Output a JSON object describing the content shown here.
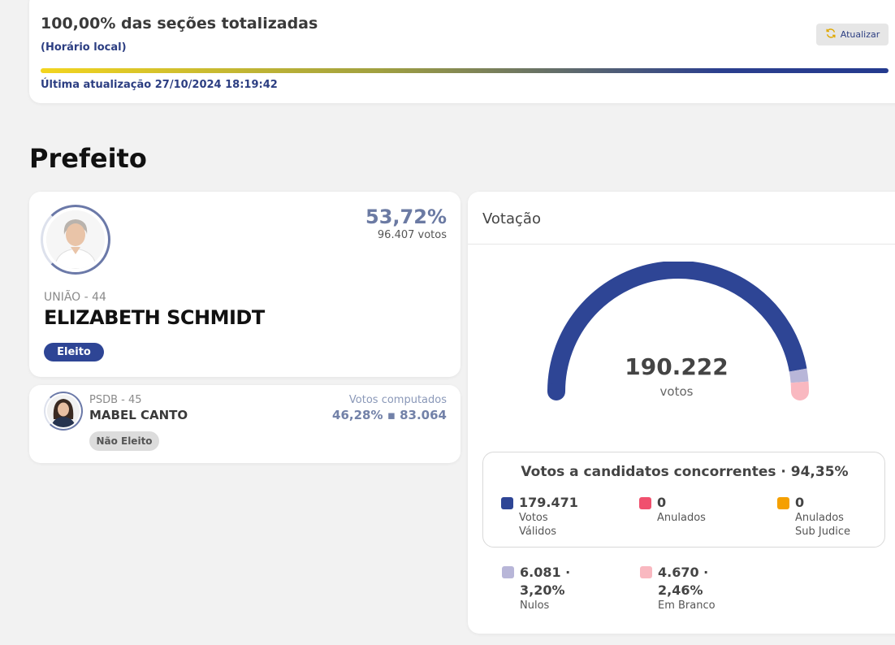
{
  "status": {
    "title": "100,00% das seções totalizadas",
    "local_time_label": "(Horário local)",
    "refresh_label": "Atualizar",
    "last_update": "Última atualização 27/10/2024 18:19:42",
    "progress_fraction": 1.0
  },
  "section_title": "Prefeito",
  "winner": {
    "party": "UNIÃO - 44",
    "name": "ELIZABETH SCHMIDT",
    "percent": "53,72%",
    "votes": "96.407 votos",
    "badge": "Eleito"
  },
  "loser": {
    "party": "PSDB - 45",
    "name": "MABEL CANTO",
    "votes_label": "Votos computados",
    "votes_value": "46,28%  ▪  83.064",
    "badge": "Não Eleito"
  },
  "votacao": {
    "title": "Votação",
    "total": "190.222",
    "total_label": "votos",
    "gauge": {
      "segments": [
        {
          "name": "Votos Válidos",
          "value": 179471,
          "color": "#2e4595"
        },
        {
          "name": "Anulados",
          "value": 0,
          "color": "#f0506e"
        },
        {
          "name": "Anulados Sub Judice",
          "value": 0,
          "color": "#f5a000"
        },
        {
          "name": "Nulos",
          "value": 6081,
          "color": "#b8b6d8"
        },
        {
          "name": "Em Branco",
          "value": 4670,
          "color": "#f9b8c0"
        }
      ]
    },
    "candidates_box_title": "Votos a candidatos concorrentes · 94,35%",
    "stats": {
      "validos": {
        "value": "179.471",
        "label_line1": "Votos",
        "label_line2": "Válidos",
        "color": "#2e4595"
      },
      "anulados": {
        "value": "0",
        "label_line1": "Anulados",
        "color": "#f0506e"
      },
      "sub_judice": {
        "value": "0",
        "label_line1": "Anulados",
        "label_line2": "Sub Judice",
        "color": "#f5a000"
      },
      "nulos": {
        "value_line1": "6.081 ·",
        "value_line2": "3,20%",
        "label": "Nulos",
        "color": "#b8b6d8"
      },
      "branco": {
        "value_line1": "4.670 ·",
        "value_line2": "2,46%",
        "label": "Em Branco",
        "color": "#f9b8c0"
      }
    }
  }
}
